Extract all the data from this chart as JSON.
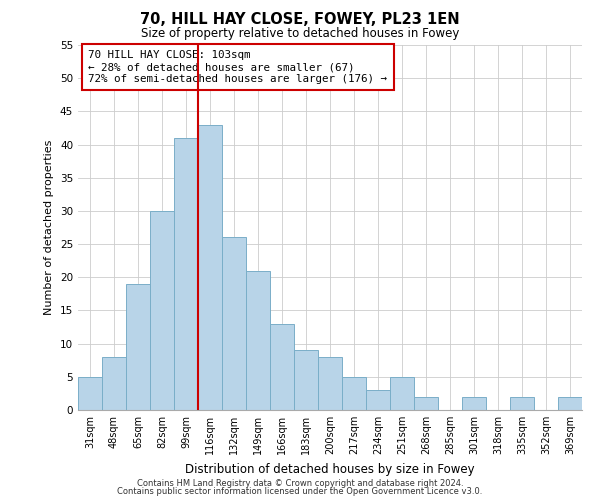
{
  "title": "70, HILL HAY CLOSE, FOWEY, PL23 1EN",
  "subtitle": "Size of property relative to detached houses in Fowey",
  "xlabel": "Distribution of detached houses by size in Fowey",
  "ylabel": "Number of detached properties",
  "bar_color": "#b8d4e8",
  "bar_edge_color": "#7aaec8",
  "categories": [
    "31sqm",
    "48sqm",
    "65sqm",
    "82sqm",
    "99sqm",
    "116sqm",
    "132sqm",
    "149sqm",
    "166sqm",
    "183sqm",
    "200sqm",
    "217sqm",
    "234sqm",
    "251sqm",
    "268sqm",
    "285sqm",
    "301sqm",
    "318sqm",
    "335sqm",
    "352sqm",
    "369sqm"
  ],
  "values": [
    5,
    8,
    19,
    30,
    41,
    43,
    26,
    21,
    13,
    9,
    8,
    5,
    3,
    5,
    2,
    0,
    2,
    0,
    2,
    0,
    2
  ],
  "ylim": [
    0,
    55
  ],
  "yticks": [
    0,
    5,
    10,
    15,
    20,
    25,
    30,
    35,
    40,
    45,
    50,
    55
  ],
  "vline_color": "#cc0000",
  "annotation_line1": "70 HILL HAY CLOSE: 103sqm",
  "annotation_line2": "← 28% of detached houses are smaller (67)",
  "annotation_line3": "72% of semi-detached houses are larger (176) →",
  "annotation_box_edge": "#cc0000",
  "footer1": "Contains HM Land Registry data © Crown copyright and database right 2024.",
  "footer2": "Contains public sector information licensed under the Open Government Licence v3.0.",
  "background_color": "#ffffff",
  "grid_color": "#cccccc"
}
